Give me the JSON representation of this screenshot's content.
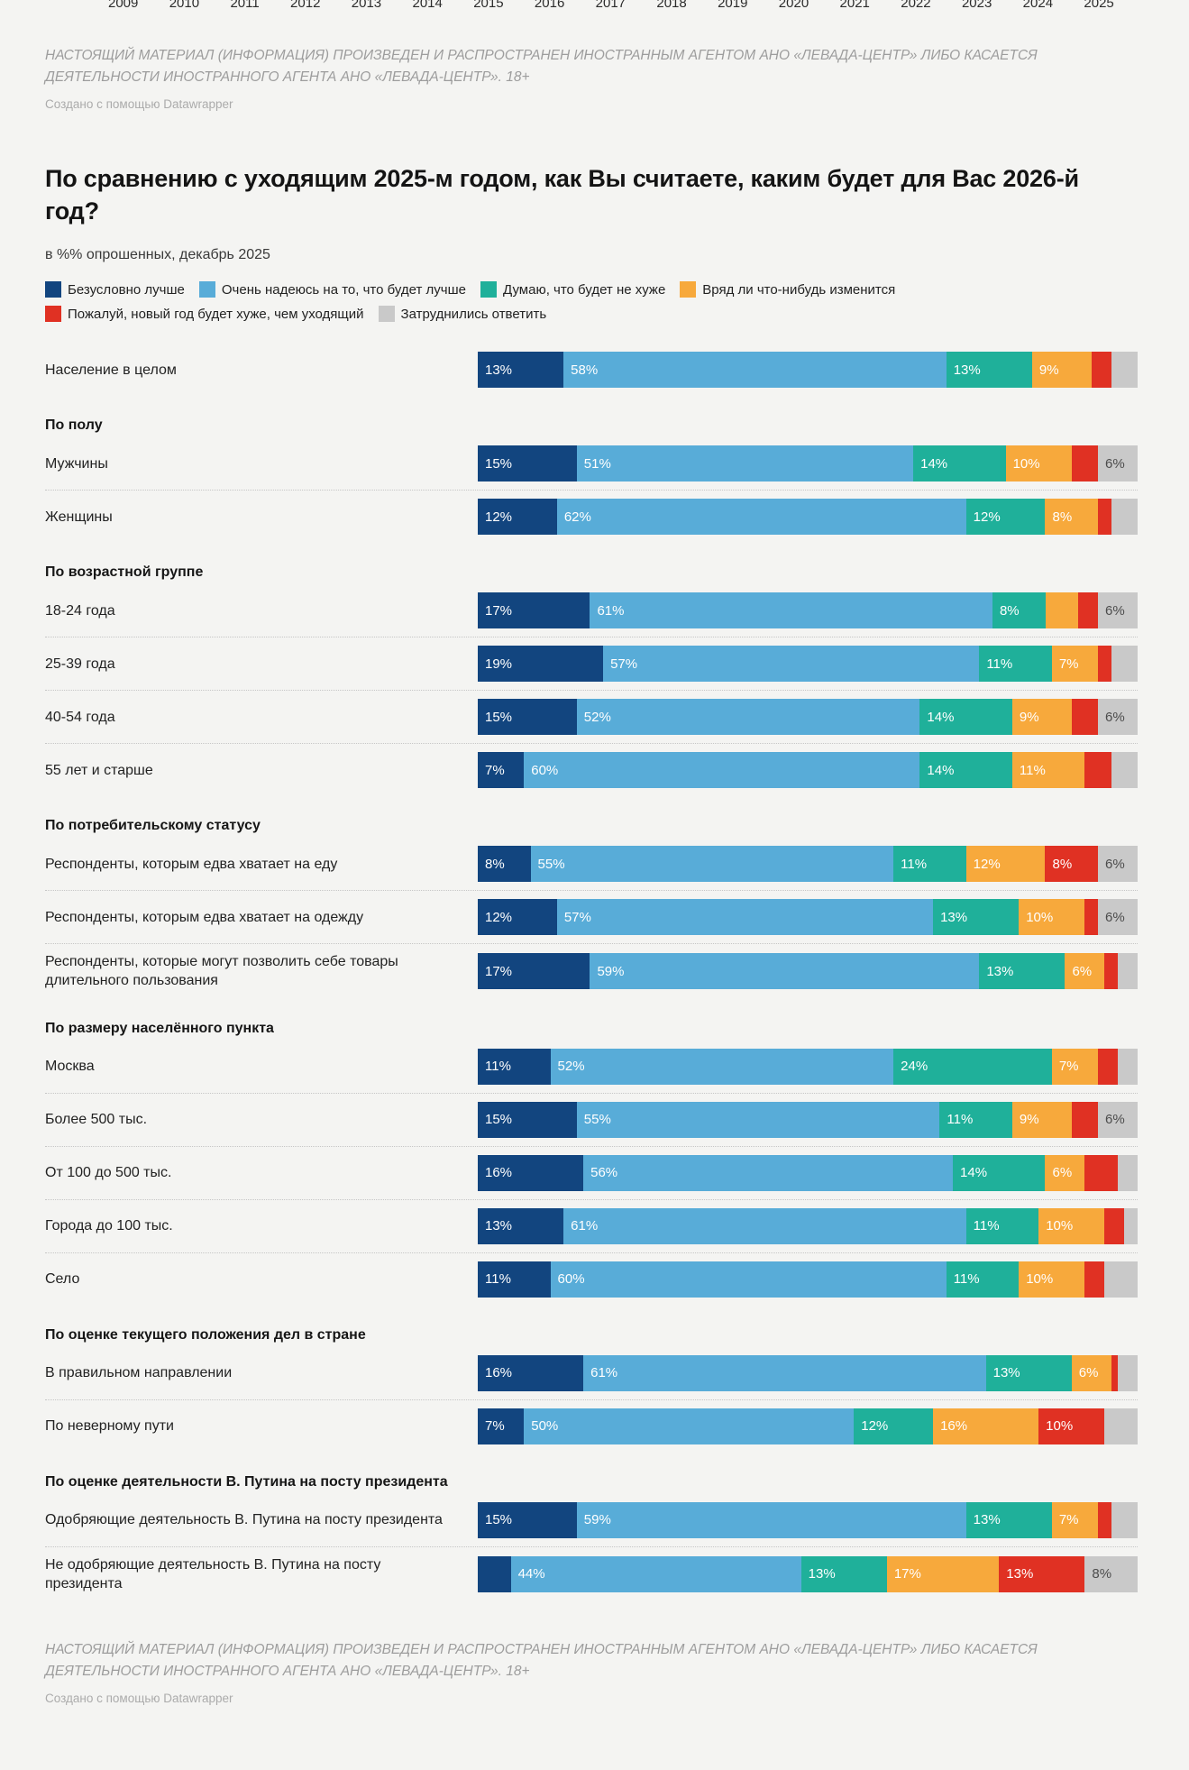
{
  "page": {
    "background_color": "#f4f4f2",
    "top_axis_years": [
      "2009",
      "2010",
      "2011",
      "2012",
      "2013",
      "2014",
      "2015",
      "2016",
      "2017",
      "2018",
      "2019",
      "2020",
      "2021",
      "2022",
      "2023",
      "2024",
      "2025"
    ],
    "foreign_agent_notice": "НАСТОЯЩИЙ МАТЕРИАЛ (ИНФОРМАЦИЯ) ПРОИЗВЕДЕН И РАСПРОСТРАНЕН ИНОСТРАННЫМ АГЕНТОМ АНО «ЛЕВАДА-ЦЕНТР» ЛИБО КАСАЕТСЯ ДЕЯТЕЛЬНОСТИ ИНОСТРАННОГО АГЕНТА АНО «ЛЕВАДА-ЦЕНТР». 18+",
    "datawrapper_credit": "Создано с помощью Datawrapper"
  },
  "chart_data": {
    "type": "bar",
    "stacked": true,
    "orientation": "horizontal",
    "title": "По сравнению с уходящим 2025-м годом, как Вы считаете, каким будет для Вас 2026-й год?",
    "subtitle": "в %% опрошенных, декабрь 2025",
    "unit": "%",
    "xlim": [
      0,
      100
    ],
    "grid": false,
    "legend_position": "top",
    "value_label_threshold": 6,
    "series": [
      {
        "name": "Безусловно лучше",
        "color": "#12457f"
      },
      {
        "name": "Очень надеюсь на то, что будет лучше",
        "color": "#58acd8"
      },
      {
        "name": "Думаю, что будет не хуже",
        "color": "#1fb09a"
      },
      {
        "name": "Вряд ли что-нибудь изменится",
        "color": "#f7a93c"
      },
      {
        "name": "Пожалуй,  новый год будет хуже, чем уходящий",
        "color": "#e03123"
      },
      {
        "name": "Затруднились ответить",
        "color": "#c9c9c9",
        "label_color": "#4c4c4c"
      }
    ],
    "groups": [
      {
        "header": "",
        "rows": [
          {
            "label": "Население в целом",
            "values": [
              13,
              58,
              13,
              9,
              3,
              4
            ]
          }
        ]
      },
      {
        "header": "По полу",
        "rows": [
          {
            "label": "Мужчины",
            "values": [
              15,
              51,
              14,
              10,
              4,
              6
            ]
          },
          {
            "label": "Женщины",
            "values": [
              12,
              62,
              12,
              8,
              2,
              4
            ]
          }
        ]
      },
      {
        "header": "По возрастной группе",
        "rows": [
          {
            "label": "18-24 года",
            "values": [
              17,
              61,
              8,
              5,
              3,
              6
            ]
          },
          {
            "label": "25-39 года",
            "values": [
              19,
              57,
              11,
              7,
              2,
              4
            ]
          },
          {
            "label": "40-54 года",
            "values": [
              15,
              52,
              14,
              9,
              4,
              6
            ]
          },
          {
            "label": "55 лет и старше",
            "values": [
              7,
              60,
              14,
              11,
              4,
              4
            ]
          }
        ]
      },
      {
        "header": "По потребительскому статусу",
        "rows": [
          {
            "label": "Респонденты, которым едва хватает на еду",
            "values": [
              8,
              55,
              11,
              12,
              8,
              6
            ]
          },
          {
            "label": "Респонденты, которым едва хватает на одежду",
            "values": [
              12,
              57,
              13,
              10,
              2,
              6
            ]
          },
          {
            "label": "Респонденты, которые могут позволить себе товары длительного пользования",
            "values": [
              17,
              59,
              13,
              6,
              2,
              3
            ]
          }
        ]
      },
      {
        "header": "По размеру населённого пункта",
        "rows": [
          {
            "label": "Москва",
            "values": [
              11,
              52,
              24,
              7,
              3,
              3
            ]
          },
          {
            "label": "Более 500 тыс.",
            "values": [
              15,
              55,
              11,
              9,
              4,
              6
            ]
          },
          {
            "label": "От 100 до 500 тыс.",
            "values": [
              16,
              56,
              14,
              6,
              5,
              3
            ]
          },
          {
            "label": "Города до 100 тыс.",
            "values": [
              13,
              61,
              11,
              10,
              3,
              2
            ]
          },
          {
            "label": "Село",
            "values": [
              11,
              60,
              11,
              10,
              3,
              5
            ]
          }
        ]
      },
      {
        "header": "По оценке текущего положения дел в стране",
        "rows": [
          {
            "label": "В правильном направлении",
            "values": [
              16,
              61,
              13,
              6,
              1,
              3
            ]
          },
          {
            "label": "По неверному пути",
            "values": [
              7,
              50,
              12,
              16,
              10,
              5
            ]
          }
        ]
      },
      {
        "header": "По оценке деятельности В. Путина на посту президента",
        "rows": [
          {
            "label": "Одобряющие деятельность В. Путина на посту президента",
            "values": [
              15,
              59,
              13,
              7,
              2,
              4
            ]
          },
          {
            "label": "Не одобряющие деятельность В. Путина на посту президента",
            "values": [
              5,
              44,
              13,
              17,
              13,
              8
            ]
          }
        ]
      }
    ]
  },
  "footer": {
    "foreign_agent_notice": "НАСТОЯЩИЙ МАТЕРИАЛ (ИНФОРМАЦИЯ) ПРОИЗВЕДЕН И РАСПРОСТРАНЕН ИНОСТРАННЫМ АГЕНТОМ АНО «ЛЕВАДА-ЦЕНТР» ЛИБО КАСАЕТСЯ ДЕЯТЕЛЬНОСТИ ИНОСТРАННОГО АГЕНТА АНО «ЛЕВАДА-ЦЕНТР». 18+",
    "datawrapper_credit": "Создано с помощью Datawrapper"
  }
}
